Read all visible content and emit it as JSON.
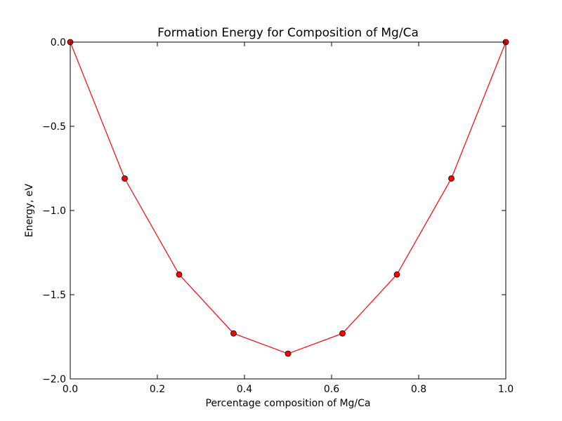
{
  "chart_data": {
    "type": "line",
    "title": "Formation Energy for Composition of Mg/Ca",
    "xlabel": "Percentage composition of Mg/Ca",
    "ylabel": "Energy, eV",
    "xlim": [
      0.0,
      1.0
    ],
    "ylim": [
      -2.0,
      0.0
    ],
    "x_ticks": [
      0.0,
      0.2,
      0.4,
      0.6,
      0.8,
      1.0
    ],
    "x_tick_labels": [
      "0.0",
      "0.2",
      "0.4",
      "0.6",
      "0.8",
      "1.0"
    ],
    "y_ticks": [
      0.0,
      -0.5,
      -1.0,
      -1.5,
      -2.0
    ],
    "y_tick_labels": [
      "0.0",
      "−0.5",
      "−1.0",
      "−1.5",
      "−2.0"
    ],
    "grid": false,
    "series": [
      {
        "color": "#ff0000",
        "marker": "circle",
        "x": [
          0.0,
          0.125,
          0.25,
          0.375,
          0.5,
          0.625,
          0.75,
          0.875,
          1.0
        ],
        "y": [
          0.0,
          -0.81,
          -1.38,
          -1.73,
          -1.85,
          -1.73,
          -1.38,
          -0.81,
          0.0
        ]
      }
    ]
  }
}
